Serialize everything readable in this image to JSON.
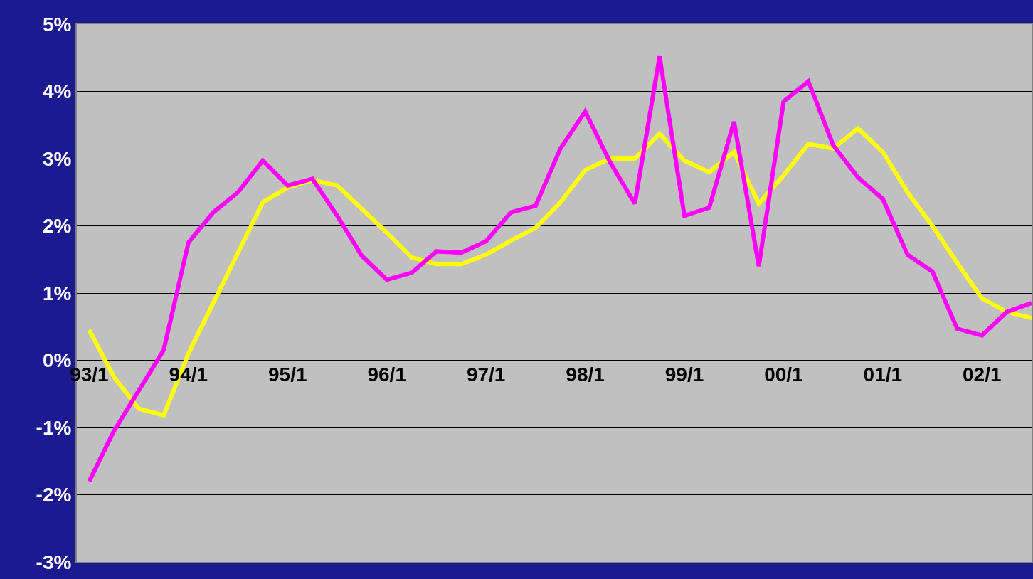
{
  "chart_data": {
    "type": "line",
    "categories": [
      "93/1",
      null,
      null,
      null,
      "94/1",
      null,
      null,
      null,
      "95/1",
      null,
      null,
      null,
      "96/1",
      null,
      null,
      null,
      "97/1",
      null,
      null,
      null,
      "98/1",
      null,
      null,
      null,
      "99/1",
      null,
      null,
      null,
      "00/1",
      null,
      null,
      null,
      "01/1",
      null,
      null,
      null,
      "02/1",
      null,
      null
    ],
    "series": [
      {
        "color": "#ffff00",
        "values": [
          0.45,
          -0.25,
          -0.72,
          -0.82,
          0.1,
          0.85,
          1.6,
          2.35,
          2.57,
          2.68,
          2.6,
          2.25,
          1.9,
          1.53,
          1.43,
          1.43,
          1.57,
          1.78,
          1.97,
          2.35,
          2.83,
          3.0,
          3.0,
          3.37,
          2.97,
          2.8,
          3.1,
          2.33,
          2.75,
          3.22,
          3.15,
          3.45,
          3.1,
          2.5,
          2.0,
          1.45,
          0.92,
          0.72,
          0.63
        ]
      },
      {
        "color": "#ff00ff",
        "values": [
          -1.8,
          -1.05,
          -0.45,
          0.15,
          1.75,
          2.2,
          2.5,
          2.97,
          2.6,
          2.7,
          2.15,
          1.55,
          1.2,
          1.3,
          1.62,
          1.6,
          1.77,
          2.2,
          2.3,
          3.15,
          3.7,
          2.95,
          2.33,
          4.52,
          2.15,
          2.27,
          3.55,
          1.4,
          3.85,
          4.15,
          3.2,
          2.72,
          2.4,
          1.57,
          1.32,
          0.47,
          0.37,
          0.72,
          0.85
        ]
      }
    ],
    "ylim": [
      -3,
      5
    ],
    "yticks": [
      {
        "value": -3,
        "label": "-3%"
      },
      {
        "value": -2,
        "label": "-2%"
      },
      {
        "value": -1,
        "label": "-1%"
      },
      {
        "value": 0,
        "label": "0%"
      },
      {
        "value": 1,
        "label": "1%"
      },
      {
        "value": 2,
        "label": "2%"
      },
      {
        "value": 3,
        "label": "3%"
      },
      {
        "value": 4,
        "label": "4%"
      },
      {
        "value": 5,
        "label": "5%"
      }
    ],
    "grid": "y",
    "marker": "none",
    "line_style": "solid"
  }
}
